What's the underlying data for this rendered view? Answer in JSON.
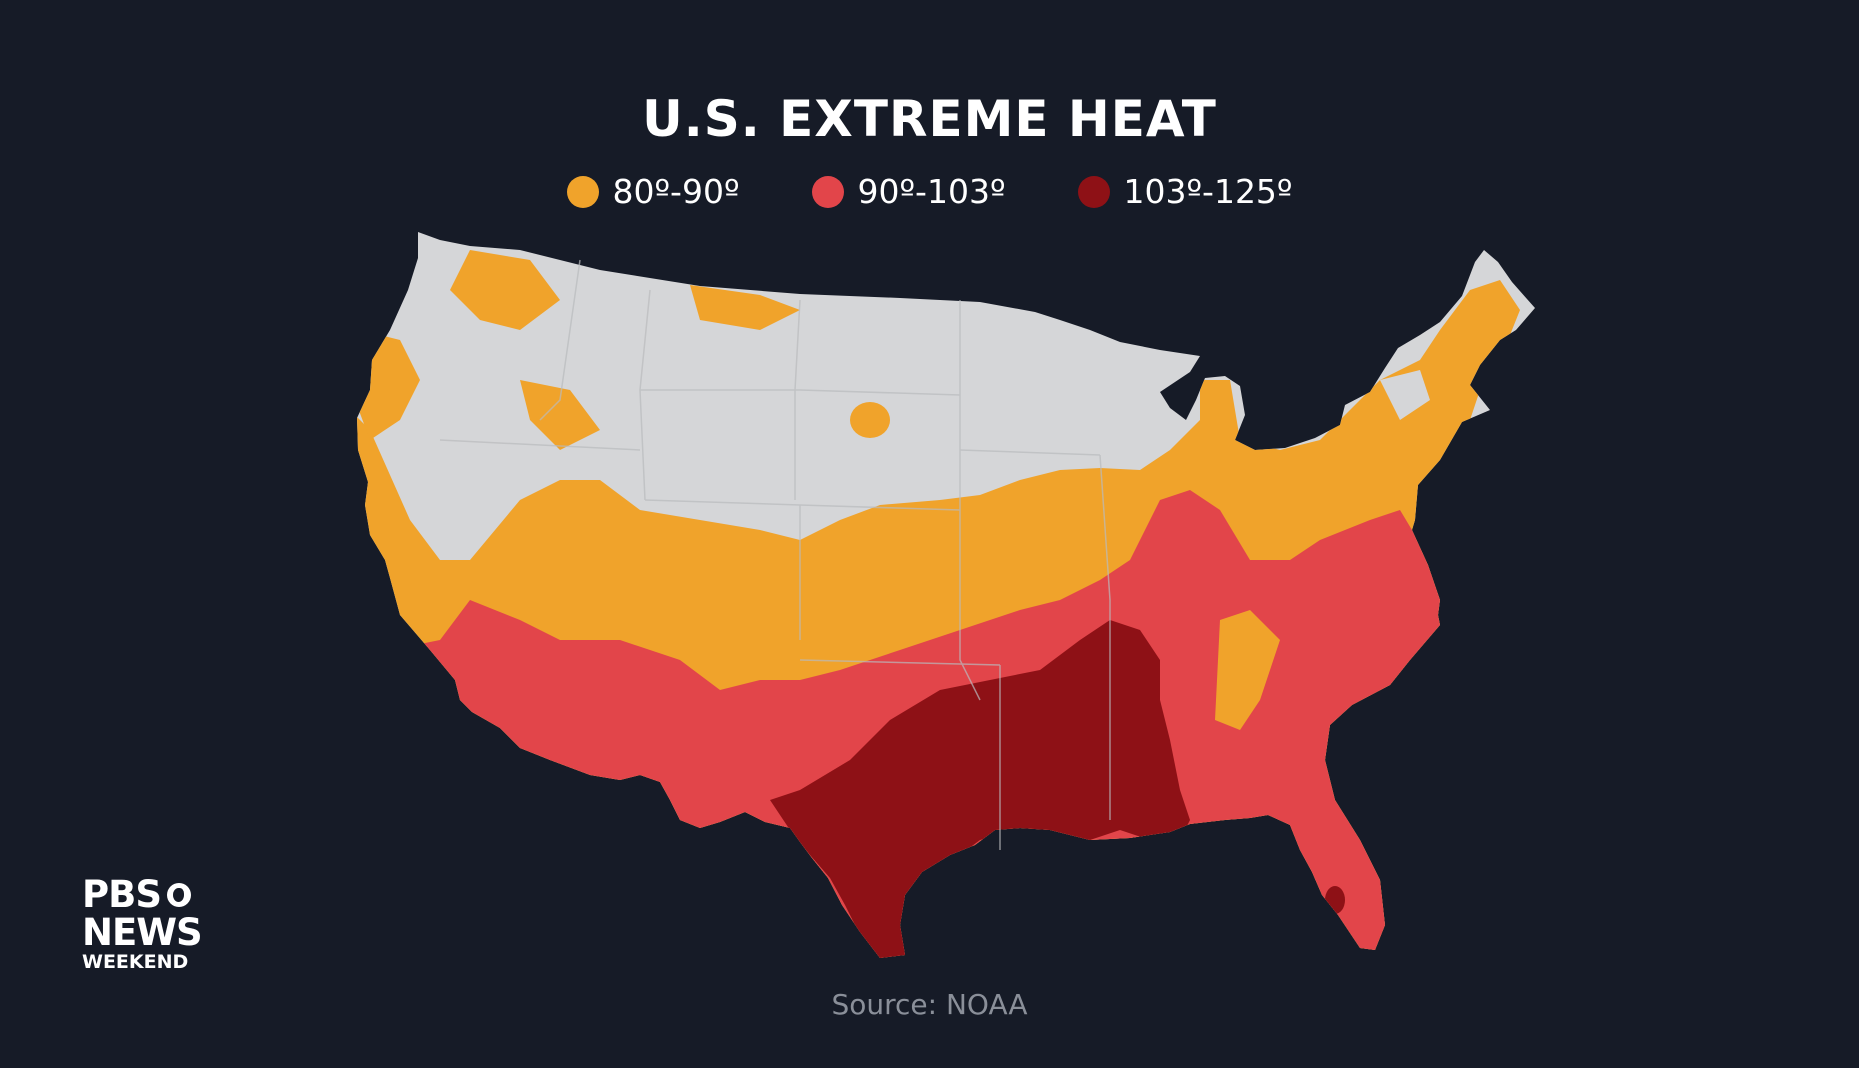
{
  "title": "U.S. EXTREME HEAT",
  "legend": [
    {
      "label": "80º-90º",
      "color": "#f0a32b"
    },
    {
      "label": "90º-103º",
      "color": "#e2454a"
    },
    {
      "label": "103º-125º",
      "color": "#8e1116"
    }
  ],
  "map": {
    "regions": [
      {
        "range": "none",
        "color": "#d5d6d8"
      },
      {
        "range": "80º-90º",
        "color": "#f0a32b"
      },
      {
        "range": "90º-103º",
        "color": "#e2454a"
      },
      {
        "range": "103º-125º",
        "color": "#8e1116"
      }
    ]
  },
  "source": "Source: NOAA",
  "logo": {
    "line1": "PBS",
    "line2": "NEWS",
    "line3": "WEEKEND"
  }
}
